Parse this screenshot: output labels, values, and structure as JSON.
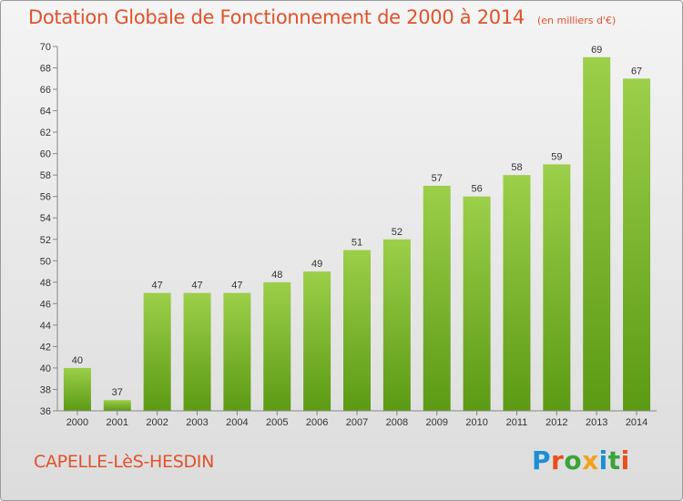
{
  "header": {
    "title": "Dotation Globale de Fonctionnement de 2000 à 2014",
    "unit": "(en milliers d'€)"
  },
  "footer": {
    "commune": "CAPELLE-LèS-HESDIN",
    "brand": "Proxiti"
  },
  "colors": {
    "accent": "#e0522c",
    "bar_light": "#9ccf4a",
    "bar_dark": "#5c9a14",
    "logo": [
      "#1a8fd6",
      "#e94f1c",
      "#3aa33a",
      "#f2a21b",
      "#1a8fd6",
      "#3aa33a",
      "#e94f1c"
    ]
  },
  "chart_data": {
    "type": "bar",
    "title": "Dotation Globale de Fonctionnement de 2000 à 2014",
    "subtitle": "(en milliers d'€)",
    "categories": [
      "2000",
      "2001",
      "2002",
      "2003",
      "2004",
      "2005",
      "2006",
      "2007",
      "2008",
      "2009",
      "2010",
      "2011",
      "2012",
      "2013",
      "2014"
    ],
    "values": [
      40,
      37,
      47,
      47,
      47,
      48,
      49,
      51,
      52,
      57,
      56,
      58,
      59,
      69,
      67
    ],
    "ylim": [
      36,
      70
    ],
    "yticks": [
      36,
      38,
      40,
      42,
      44,
      46,
      48,
      50,
      52,
      54,
      56,
      58,
      60,
      62,
      64,
      66,
      68,
      70
    ],
    "grid": false,
    "data_labels": true
  }
}
